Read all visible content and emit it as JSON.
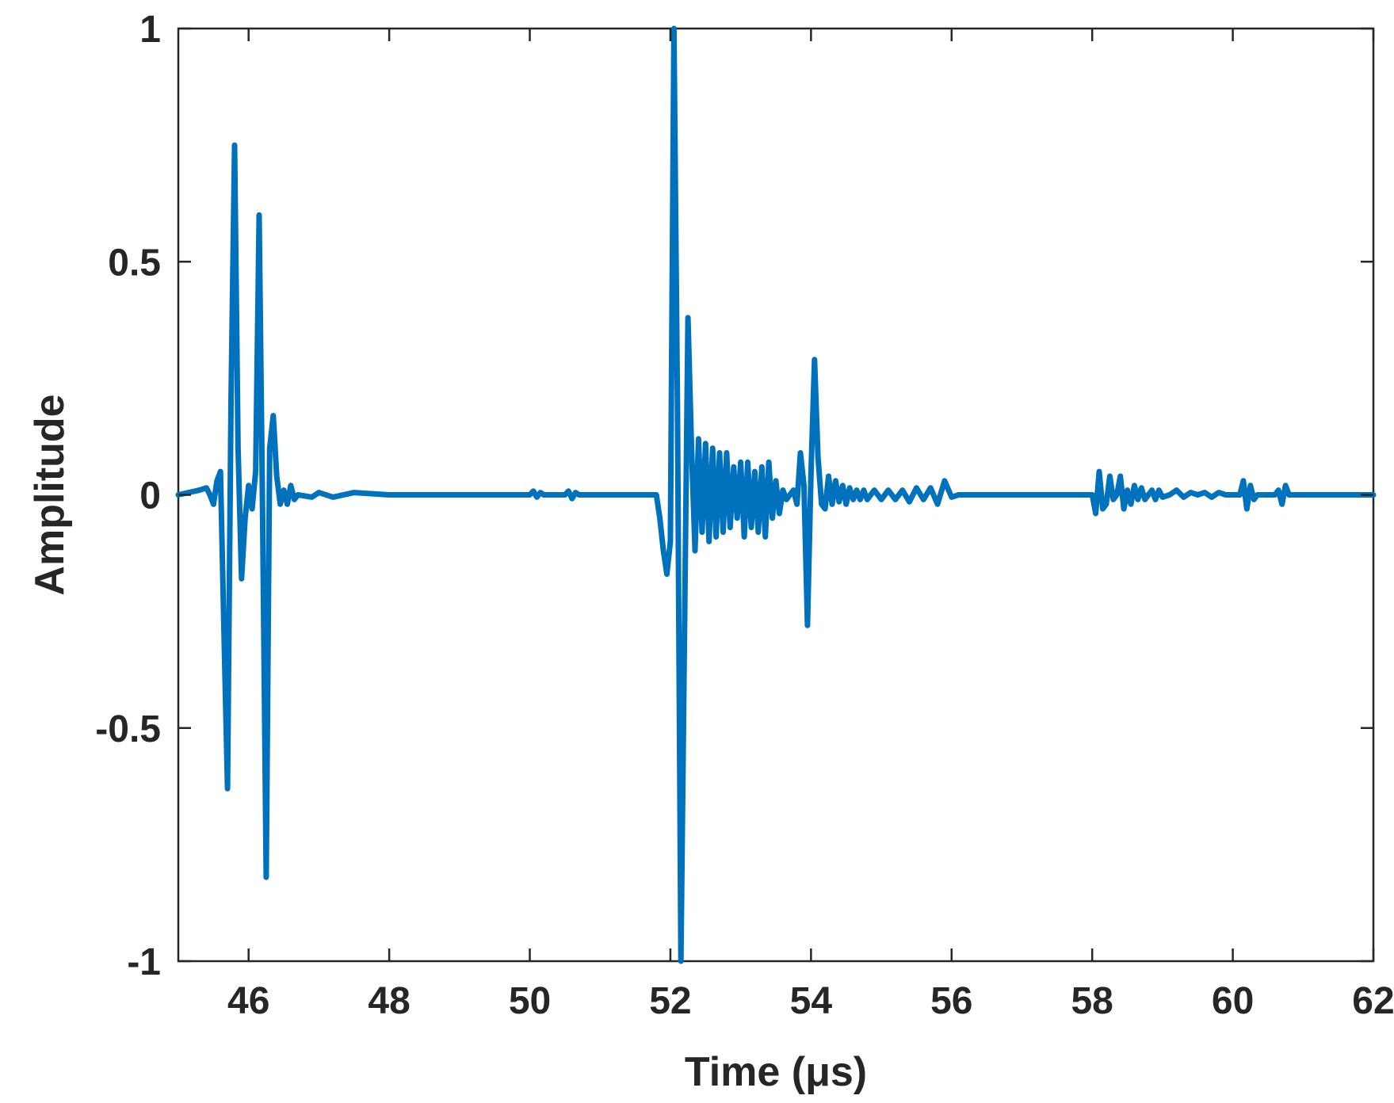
{
  "chart_data": {
    "type": "line",
    "title": "",
    "xlabel": "Time (μs)",
    "ylabel": "Amplitude",
    "xlim": [
      45,
      62
    ],
    "ylim": [
      -1,
      1
    ],
    "xticks": [
      46,
      48,
      50,
      52,
      54,
      56,
      58,
      60,
      62
    ],
    "yticks": [
      -1,
      -0.5,
      0,
      0.5,
      1
    ],
    "xtick_labels": [
      "46",
      "48",
      "50",
      "52",
      "54",
      "56",
      "58",
      "60",
      "62"
    ],
    "ytick_labels": [
      "-1",
      "-0.5",
      "0",
      "0.5",
      "1"
    ],
    "grid": false,
    "legend": "none",
    "series": [
      {
        "color": "#0072BD",
        "x": [
          45.0,
          45.3,
          45.4,
          45.45,
          45.5,
          45.55,
          45.6,
          45.65,
          45.7,
          45.75,
          45.8,
          45.85,
          45.9,
          45.95,
          46.0,
          46.05,
          46.1,
          46.15,
          46.2,
          46.25,
          46.3,
          46.35,
          46.4,
          46.45,
          46.5,
          46.55,
          46.6,
          46.65,
          46.7,
          46.9,
          47.0,
          47.2,
          47.5,
          48.0,
          49.0,
          50.0,
          50.05,
          50.1,
          50.15,
          50.2,
          50.5,
          50.55,
          50.6,
          50.65,
          50.7,
          51.0,
          51.8,
          51.85,
          51.9,
          51.95,
          52.0,
          52.05,
          52.1,
          52.15,
          52.2,
          52.25,
          52.3,
          52.35,
          52.4,
          52.45,
          52.5,
          52.55,
          52.6,
          52.65,
          52.7,
          52.75,
          52.8,
          52.85,
          52.9,
          52.95,
          53.0,
          53.05,
          53.1,
          53.15,
          53.2,
          53.25,
          53.3,
          53.35,
          53.4,
          53.45,
          53.5,
          53.55,
          53.6,
          53.65,
          53.7,
          53.75,
          53.8,
          53.85,
          53.9,
          53.95,
          54.0,
          54.05,
          54.1,
          54.15,
          54.2,
          54.25,
          54.3,
          54.35,
          54.4,
          54.45,
          54.5,
          54.55,
          54.6,
          54.65,
          54.7,
          54.75,
          54.8,
          54.9,
          55.0,
          55.1,
          55.2,
          55.3,
          55.4,
          55.5,
          55.6,
          55.7,
          55.8,
          55.9,
          56.0,
          56.1,
          56.2,
          56.3,
          56.4,
          56.5,
          56.6,
          56.7,
          56.8,
          57.0,
          57.5,
          58.0,
          58.05,
          58.1,
          58.15,
          58.2,
          58.25,
          58.3,
          58.35,
          58.4,
          58.45,
          58.5,
          58.55,
          58.6,
          58.65,
          58.7,
          58.75,
          58.8,
          58.85,
          58.9,
          58.95,
          59.0,
          59.1,
          59.2,
          59.3,
          59.4,
          59.5,
          59.6,
          59.7,
          59.8,
          59.9,
          60.0,
          60.1,
          60.15,
          60.2,
          60.25,
          60.3,
          60.35,
          60.4,
          60.5,
          60.6,
          60.65,
          60.7,
          60.75,
          60.8,
          60.9,
          61.0,
          61.2,
          61.5,
          62.0
        ],
        "y": [
          0.0,
          0.01,
          0.015,
          0.0,
          -0.02,
          0.03,
          0.05,
          -0.3,
          -0.63,
          0.2,
          0.75,
          0.1,
          -0.18,
          -0.05,
          0.02,
          -0.03,
          0.05,
          0.6,
          -0.05,
          -0.82,
          0.1,
          0.17,
          0.04,
          -0.02,
          0.01,
          -0.02,
          0.02,
          -0.01,
          0.0,
          -0.005,
          0.005,
          -0.005,
          0.005,
          0.0,
          0.0,
          0.0,
          0.008,
          -0.005,
          0.005,
          0.0,
          0.0,
          0.008,
          -0.008,
          0.005,
          0.0,
          0.0,
          0.0,
          -0.05,
          -0.12,
          -0.17,
          -0.1,
          1.0,
          0.2,
          -1.0,
          -0.3,
          0.38,
          0.1,
          -0.12,
          0.12,
          -0.08,
          0.11,
          -0.1,
          0.1,
          -0.09,
          0.09,
          -0.08,
          0.09,
          -0.07,
          0.06,
          -0.05,
          0.07,
          -0.09,
          0.07,
          -0.07,
          0.05,
          -0.08,
          0.06,
          -0.09,
          0.07,
          -0.05,
          0.03,
          -0.04,
          0.01,
          -0.01,
          0.0,
          0.01,
          -0.02,
          0.09,
          0.02,
          -0.28,
          0.05,
          0.29,
          0.08,
          -0.02,
          -0.03,
          0.04,
          -0.02,
          0.03,
          -0.015,
          0.02,
          -0.02,
          0.015,
          -0.01,
          0.01,
          -0.01,
          0.01,
          -0.01,
          0.01,
          -0.01,
          0.01,
          -0.01,
          0.01,
          -0.015,
          0.015,
          -0.01,
          0.015,
          -0.02,
          0.03,
          -0.005,
          0.0,
          0.0,
          0.0,
          0.0,
          0.0,
          0.0,
          0.0,
          0.0,
          0.0,
          0.0,
          0.0,
          -0.04,
          0.05,
          -0.03,
          -0.02,
          0.04,
          -0.01,
          0.0,
          0.04,
          -0.03,
          0.01,
          -0.02,
          0.02,
          -0.01,
          0.015,
          -0.01,
          0.0,
          0.01,
          -0.01,
          0.01,
          -0.005,
          0.0,
          0.01,
          -0.005,
          0.005,
          0.0,
          0.005,
          -0.005,
          0.005,
          0.0,
          0.0,
          0.0,
          0.03,
          -0.03,
          0.02,
          -0.01,
          0.0,
          0.0,
          0.0,
          0.0,
          0.01,
          -0.02,
          0.02,
          0.0,
          0.0,
          0.0,
          0.0,
          0.0,
          0.0
        ]
      }
    ]
  }
}
